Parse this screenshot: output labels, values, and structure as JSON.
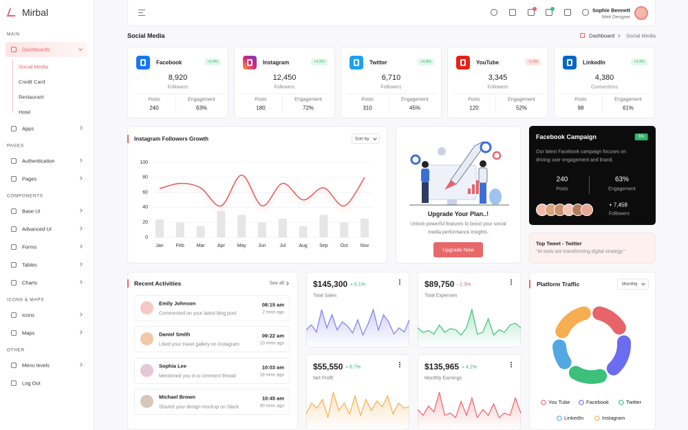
{
  "sidebar": {
    "logo": "Mirbal",
    "sections": [
      {
        "title": "MAIN",
        "items": [
          {
            "label": "Dashboards",
            "children": [
              "Social Media",
              "Credit Card",
              "Restaurant",
              "Hotel"
            ]
          },
          {
            "label": "Apps"
          }
        ]
      },
      {
        "title": "PAGES",
        "items": [
          {
            "label": "Authentication"
          },
          {
            "label": "Pages"
          }
        ]
      },
      {
        "title": "COMPONENTS",
        "items": [
          {
            "label": "Base UI"
          },
          {
            "label": "Advanced UI"
          },
          {
            "label": "Forms"
          },
          {
            "label": "Tables"
          },
          {
            "label": "Charts"
          }
        ]
      },
      {
        "title": "ICONS & MAPS",
        "items": [
          {
            "label": "Icons"
          },
          {
            "label": "Maps"
          }
        ]
      },
      {
        "title": "OTHER",
        "items": [
          {
            "label": "Menu levels"
          },
          {
            "label": "Log Out"
          }
        ]
      }
    ]
  },
  "header": {
    "user_name": "Sophie Bennett",
    "user_role": "Web Designer"
  },
  "page": {
    "title": "Social Media",
    "breadcrumb": [
      "Dashboard",
      "Social Media"
    ]
  },
  "social_cards": [
    {
      "name": "Facebook",
      "change": "+3.4%",
      "count": "8,920",
      "count_label": "Followers",
      "posts_label": "Posts",
      "posts": "240",
      "engagement_label": "Engagement",
      "engagement": "63%"
    },
    {
      "name": "Instagram",
      "change": "+3.2%",
      "count": "12,450",
      "count_label": "Followers",
      "posts_label": "Posts",
      "posts": "180",
      "engagement_label": "Engagement",
      "engagement": "72%"
    },
    {
      "name": "Twitter",
      "change": "+4.8%",
      "count": "6,710",
      "count_label": "Followers",
      "posts_label": "Posts",
      "posts": "310",
      "engagement_label": "Engagement",
      "engagement": "45%"
    },
    {
      "name": "YouTube",
      "change": "-1.3%",
      "count": "3,345",
      "count_label": "Followers",
      "posts_label": "Posts",
      "posts": "120",
      "engagement_label": "Engagement",
      "engagement": "52%"
    },
    {
      "name": "LinkedIn",
      "change": "+2.9%",
      "count": "4,380",
      "count_label": "Connections",
      "posts_label": "Posts",
      "posts": "98",
      "engagement_label": "Engagement",
      "engagement": "61%"
    }
  ],
  "upgrade": {
    "title": "Upgrade Your Plan..!",
    "text": [
      "Unlock powerful features to boost your social",
      "media performance insights."
    ],
    "button": "Upgrade Now"
  },
  "campaign": {
    "title": "Facebook Campaign",
    "badge": "5%",
    "text": [
      "Our latest Facebook campaign focuses on",
      "driving user engagement and brand."
    ],
    "posts": "240",
    "posts_label": "Posts",
    "engagement": "63%",
    "engagement_label": "Engagement",
    "followers": "+ 7,458",
    "followers_label": "Followers"
  },
  "top_tweet": {
    "title": "Top Tweet - Twitter",
    "quote": "\"AI tools are transforming digital strategy.\""
  },
  "activities": {
    "title": "Recent Activities",
    "see_all": "See all",
    "items": [
      {
        "name": "Emily Johnson",
        "text": "Commented on your latest blog post",
        "time": "08:15 am",
        "ago": "2 mins ago"
      },
      {
        "name": "Daniel Smith",
        "text": "Liked your travel gallery on Instagram",
        "time": "09:22 am",
        "ago": "10 mins ago"
      },
      {
        "name": "Sophia Lee",
        "text": "Mentioned you in a comment thread",
        "time": "10:03 am",
        "ago": "18 mins ago"
      },
      {
        "name": "Michael Brown",
        "text": "Shared your design mockup on Slack",
        "time": "10:45 am",
        "ago": "30 mins ago"
      }
    ]
  },
  "stat_cards": [
    {
      "value": "$145,300",
      "change": "+ 5.1%",
      "label": "Total Sales"
    },
    {
      "value": "$89,750",
      "change": "- 2.3%",
      "label": "Total Expenses"
    },
    {
      "value": "$55,550",
      "change": "+ 8.7%",
      "label": "Net Profit"
    },
    {
      "value": "$135,965",
      "change": "+ 4.2%",
      "label": "Monthly Earnings"
    }
  ],
  "chart_data": [
    {
      "type": "combo",
      "title": "Instagram Followers Growth",
      "control": "Sort by",
      "categories": [
        "Jan",
        "Feb",
        "Mar",
        "Apr",
        "May",
        "Jun",
        "Jul",
        "Aug",
        "Sep",
        "Oct",
        "Nov"
      ],
      "ylim": [
        0,
        100
      ],
      "yticks": [
        0,
        20,
        40,
        60,
        80,
        100
      ],
      "grid": true,
      "series": [
        {
          "type": "line",
          "color": "#e0615f",
          "values": [
            65,
            72,
            66,
            42,
            83,
            42,
            72,
            50,
            66,
            42,
            80
          ]
        },
        {
          "type": "bar",
          "color": "#e6e6e8",
          "values": [
            24,
            20,
            15,
            35,
            30,
            20,
            25,
            15,
            30,
            20,
            25
          ]
        }
      ]
    },
    {
      "type": "area",
      "color": "#7c7cf0",
      "values": [
        30,
        35,
        28,
        50,
        32,
        45,
        30,
        38,
        34,
        27,
        40,
        25,
        36,
        50,
        30,
        45,
        38,
        26,
        32,
        28,
        40
      ]
    },
    {
      "type": "area",
      "color": "#3cc07a",
      "values": [
        35,
        30,
        32,
        28,
        38,
        30,
        34,
        33,
        27,
        35,
        55,
        28,
        30,
        45,
        27,
        33,
        30,
        38,
        40,
        35
      ]
    },
    {
      "type": "area",
      "color": "#f6ae52",
      "values": [
        30,
        45,
        38,
        50,
        25,
        60,
        35,
        45,
        30,
        55,
        28,
        50,
        35,
        48,
        40,
        55,
        30,
        45,
        38,
        40
      ]
    },
    {
      "type": "area",
      "color": "#e8636a",
      "values": [
        35,
        30,
        38,
        33,
        50,
        30,
        32,
        28,
        42,
        30,
        45,
        28,
        35,
        30,
        40,
        28,
        32,
        30,
        45,
        32
      ]
    },
    {
      "type": "donut",
      "title": "Platform Traffic",
      "control": "Monthly",
      "categories": [
        "You Tube",
        "Facebook",
        "Twitter",
        "LinkedIn",
        "Instagram"
      ],
      "values": [
        20,
        22,
        20,
        16,
        22
      ],
      "colors": [
        "#e8636a",
        "#6c6cf0",
        "#3cc07a",
        "#52a8e0",
        "#f6ae52"
      ]
    }
  ]
}
